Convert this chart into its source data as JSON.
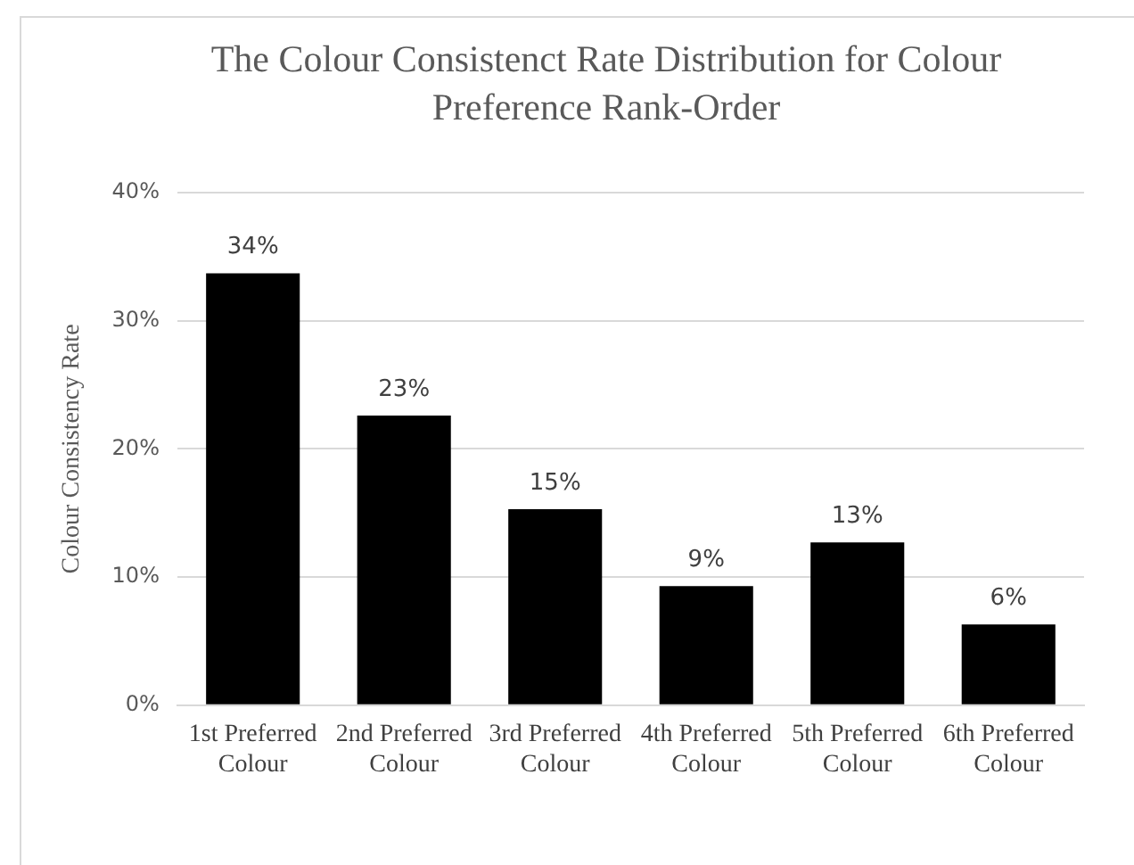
{
  "chart_data": {
    "type": "bar",
    "title": "The Colour Consistenct Rate Distribution for Colour Preference Rank-Order",
    "ylabel": "Colour Consistency Rate",
    "categories": [
      "1st Preferred Colour",
      "2nd Preferred Colour",
      "3rd Preferred Colour",
      "4th Preferred Colour",
      "5th Preferred Colour",
      "6th Preferred Colour"
    ],
    "values": [
      33.7,
      22.6,
      15.3,
      9.3,
      12.7,
      6.3
    ],
    "value_labels": [
      "34%",
      "23%",
      "15%",
      "9%",
      "13%",
      "6%"
    ],
    "color": "#000000",
    "ylim": [
      0,
      40
    ],
    "yticks": [
      {
        "value": 0,
        "label": "0%"
      },
      {
        "value": 10,
        "label": "10%"
      },
      {
        "value": 20,
        "label": "20%"
      },
      {
        "value": 30,
        "label": "30%"
      },
      {
        "value": 40,
        "label": "40%"
      }
    ],
    "grid": "y",
    "legend": false
  }
}
